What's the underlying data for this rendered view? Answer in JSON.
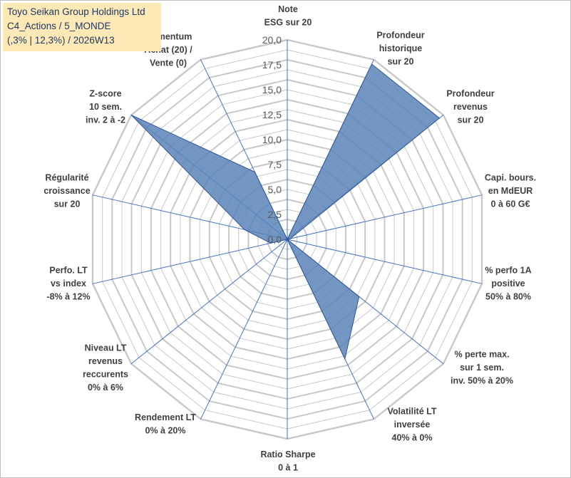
{
  "title_box": {
    "line1": "Toyo Seikan Group Holdings Ltd",
    "line2": "C4_Actions / 5_MONDE",
    "line3": "(,3% | 12,3%) / 2026W13"
  },
  "chart_data": {
    "type": "radar",
    "r_min": 0,
    "r_max": 20,
    "grid_rings": 20,
    "tick_labels": [
      "0,0",
      "2,5",
      "5,0",
      "7,5",
      "10,0",
      "12,5",
      "15,0",
      "17,5",
      "20,0"
    ],
    "tick_values": [
      0,
      2.5,
      5,
      7.5,
      10,
      12.5,
      15,
      17.5,
      20
    ],
    "axes": [
      {
        "label": [
          "Note",
          "ESG sur 20"
        ],
        "value": 0
      },
      {
        "label": [
          "Profondeur",
          "historique",
          "sur 20"
        ],
        "value": 19.5
      },
      {
        "label": [
          "Profondeur",
          "revenus",
          "sur 20"
        ],
        "value": 19.5
      },
      {
        "label": [
          "Capi. bours.",
          "en MdEUR",
          "0 à 60 G€"
        ],
        "value": 0.3
      },
      {
        "label": [
          "% perfo 1A",
          "positive",
          "50% à 80%"
        ],
        "value": 0
      },
      {
        "label": [
          "% perte max.",
          "sur 1 sem.",
          "inv. 50% à 20%"
        ],
        "value": 9.2
      },
      {
        "label": [
          "Volatilité LT",
          "inversée",
          "40% à 0%"
        ],
        "value": 13.3
      },
      {
        "label": [
          "Ratio Sharpe",
          "0 à 1"
        ],
        "value": 0
      },
      {
        "label": [
          "Rendement LT",
          "0% à 20%"
        ],
        "value": 0
      },
      {
        "label": [
          "Niveau LT",
          "revenus",
          "reccurents",
          "0% à 6%"
        ],
        "value": 0
      },
      {
        "label": [
          "Perfo. LT",
          "vs index",
          "-8% à 12%"
        ],
        "value": 1.7
      },
      {
        "label": [
          "Régularité",
          "croissance",
          "sur 20"
        ],
        "value": 4.4
      },
      {
        "label": [
          "Z-score",
          "10 sem.",
          "inv. 2 à -2"
        ],
        "value": 20
      },
      {
        "label": [
          "Momentum",
          "Achat (20) /",
          "Vente (0)"
        ],
        "value": 7.5
      }
    ],
    "series": [
      {
        "name": "Toyo Seikan Group Holdings Ltd"
      }
    ],
    "colors": {
      "fill": "#5b84b7",
      "stroke": "#2f5597",
      "grid": "#c8c8c8",
      "spoke": "#4472c4"
    }
  }
}
